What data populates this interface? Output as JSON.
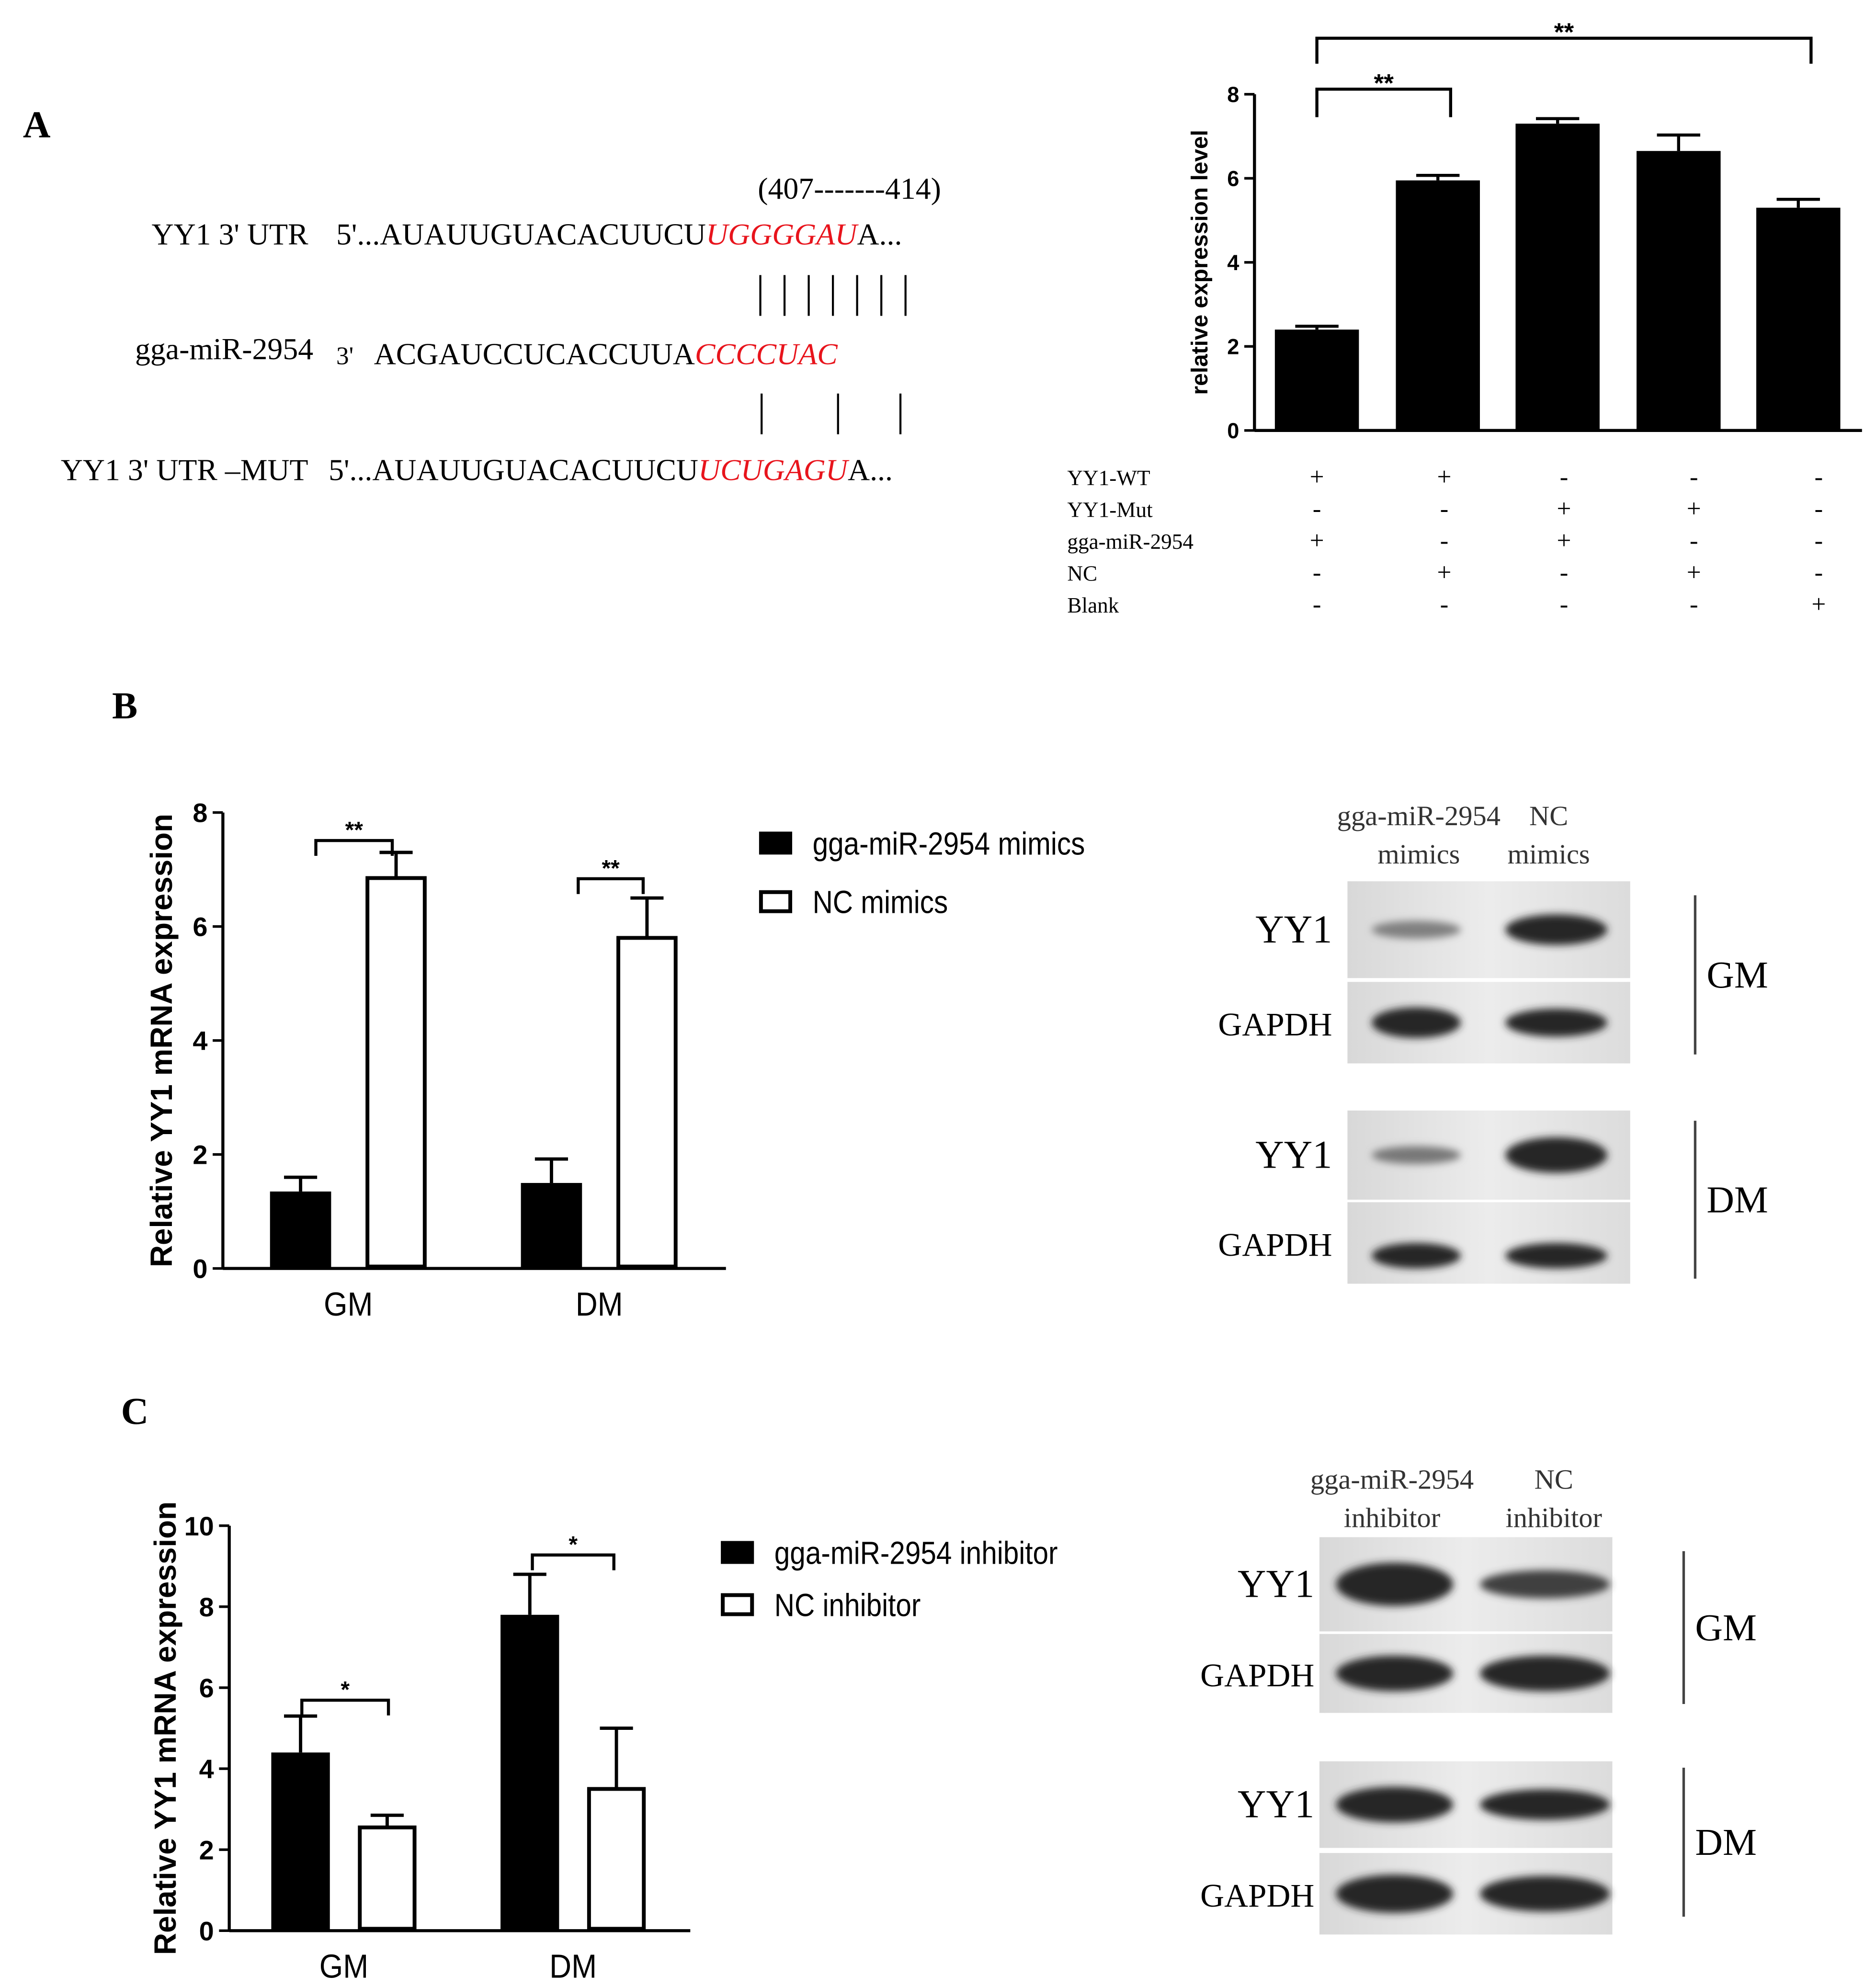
{
  "panel_labels": {
    "a": "A",
    "b": "B",
    "c": "C"
  },
  "colors": {
    "highlight": "#e8141c",
    "bar_dark": "#000000",
    "bar_light": "#ffffff",
    "line": "#000000"
  },
  "sequence": {
    "position": "(407-------414)",
    "rows": [
      {
        "label": "YY1 3' UTR",
        "strand": "5'...",
        "seq_pre": "AUAUUGUACACUUCU",
        "seq_red": "UGGGGAU",
        "seq_post": "A..."
      },
      {
        "label": "gga-miR-2954",
        "strand": "3'",
        "seq_pre": "ACGAUCCUCACCUUA",
        "seq_red": "CCCCUAC",
        "seq_post": ""
      },
      {
        "label": "YY1 3' UTR –MUT",
        "strand": "5'...",
        "seq_pre": "AUAUUGUACACUUCU",
        "seq_red": "UCUGAGU",
        "seq_post": "A..."
      }
    ]
  },
  "table_a": {
    "rows": [
      {
        "label": "YY1-WT",
        "signs": [
          "+",
          "+",
          "-",
          "-",
          "-"
        ]
      },
      {
        "label": "YY1-Mut",
        "signs": [
          "-",
          "-",
          "+",
          "+",
          "-"
        ]
      },
      {
        "label": "gga-miR-2954",
        "signs": [
          "+",
          "-",
          "+",
          "-",
          "-"
        ]
      },
      {
        "label": "NC",
        "signs": [
          "-",
          "+",
          "-",
          "+",
          "-"
        ]
      },
      {
        "label": "Blank",
        "signs": [
          "-",
          "-",
          "-",
          "-",
          "+"
        ]
      }
    ]
  },
  "chart_data": [
    {
      "id": "A",
      "type": "bar",
      "ylabel": "relative expression level",
      "ylim": [
        0,
        8
      ],
      "yticks": [
        0,
        2,
        4,
        6,
        8
      ],
      "values": [
        2.4,
        5.95,
        7.3,
        6.65,
        5.3
      ],
      "errors": [
        0.08,
        0.12,
        0.12,
        0.38,
        0.2
      ],
      "significance": [
        {
          "from": 0,
          "to": 1,
          "label": "**"
        },
        {
          "from": 0,
          "to": 4,
          "label": "**"
        }
      ]
    },
    {
      "id": "B",
      "type": "bar",
      "ylabel": "Relative YY1 mRNA expression",
      "categories": [
        "GM",
        "DM"
      ],
      "ylim": [
        0,
        8
      ],
      "yticks": [
        0,
        2,
        4,
        6,
        8
      ],
      "series": [
        {
          "name": "gga-miR-2954 mimics",
          "values": [
            1.35,
            1.5
          ],
          "errors": [
            0.25,
            0.42
          ]
        },
        {
          "name": "NC  mimics",
          "values": [
            6.85,
            5.8
          ],
          "errors": [
            0.45,
            0.7
          ]
        }
      ],
      "significance": [
        {
          "category": 0,
          "label": "**"
        },
        {
          "category": 1,
          "label": "**"
        }
      ],
      "legend": "right"
    },
    {
      "id": "C",
      "type": "bar",
      "ylabel": "Relative YY1 mRNA expression",
      "categories": [
        "GM",
        "DM"
      ],
      "ylim": [
        0,
        10
      ],
      "yticks": [
        0,
        2,
        4,
        6,
        8,
        10
      ],
      "series": [
        {
          "name": "gga-miR-2954 inhibitor",
          "values": [
            4.4,
            7.8
          ],
          "errors": [
            0.9,
            1.0
          ]
        },
        {
          "name": "NC  inhibitor",
          "values": [
            2.55,
            3.5
          ],
          "errors": [
            0.3,
            1.5
          ]
        }
      ],
      "significance": [
        {
          "category": 0,
          "label": "*"
        },
        {
          "category": 1,
          "label": "*"
        }
      ],
      "legend": "right"
    }
  ],
  "blot_b": {
    "col1": [
      "gga-miR-2954",
      "mimics"
    ],
    "col2": [
      "NC",
      "mimics"
    ],
    "row_labels": [
      "YY1",
      "GAPDH",
      "YY1",
      "GAPDH"
    ],
    "groups": [
      "GM",
      "DM"
    ]
  },
  "blot_c": {
    "col1": [
      "gga-miR-2954",
      "inhibitor"
    ],
    "col2": [
      "NC",
      "inhibitor"
    ],
    "row_labels": [
      "YY1",
      "GAPDH",
      "YY1",
      "GAPDH"
    ],
    "groups": [
      "GM",
      "DM"
    ]
  }
}
